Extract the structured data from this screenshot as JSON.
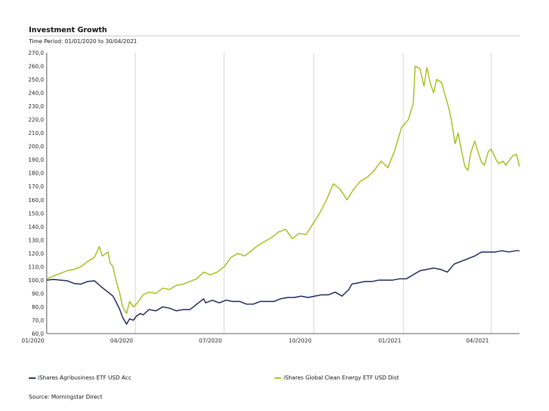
{
  "header": {
    "title": "Investment Growth",
    "subtitle": "Time Period: 01/01/2020 to 30/04/2021"
  },
  "source": "Source: Morningstar Direct",
  "colors": {
    "agri": "#1c2558",
    "clean": "#a4bf1e",
    "grid": "#e0e0e0",
    "axis": "#555555"
  },
  "chart_data": {
    "type": "line",
    "title": "Investment Growth",
    "xlabel": "",
    "ylabel": "",
    "ylim": [
      60,
      270
    ],
    "xlim": [
      "2020-01-01",
      "2021-04-30"
    ],
    "yticks": [
      "60,0",
      "70,0",
      "80,0",
      "90,0",
      "100,0",
      "110,0",
      "120,0",
      "130,0",
      "140,0",
      "150,0",
      "160,0",
      "170,0",
      "180,0",
      "190,0",
      "200,0",
      "210,0",
      "220,0",
      "230,0",
      "240,0",
      "250,0",
      "260,0",
      "270,0"
    ],
    "xticks": [
      {
        "label": "01/2020",
        "date": "2020-01-01"
      },
      {
        "label": "04/2020",
        "date": "2020-04-01"
      },
      {
        "label": "07/2020",
        "date": "2020-07-01"
      },
      {
        "label": "10/2020",
        "date": "2020-10-01"
      },
      {
        "label": "01/2021",
        "date": "2021-01-01"
      },
      {
        "label": "04/2021",
        "date": "2021-04-01"
      }
    ],
    "grid": true,
    "legend": "bottom",
    "series": [
      {
        "name": "iShares Agribusiness ETF USD Acc",
        "points": [
          [
            "2020-01-01",
            100
          ],
          [
            "2020-01-08",
            100.5
          ],
          [
            "2020-01-15",
            100
          ],
          [
            "2020-01-22",
            99.5
          ],
          [
            "2020-01-29",
            97.5
          ],
          [
            "2020-02-05",
            97
          ],
          [
            "2020-02-12",
            99
          ],
          [
            "2020-02-19",
            99.5
          ],
          [
            "2020-02-26",
            95
          ],
          [
            "2020-03-04",
            91
          ],
          [
            "2020-03-09",
            88
          ],
          [
            "2020-03-12",
            84
          ],
          [
            "2020-03-16",
            78
          ],
          [
            "2020-03-19",
            72
          ],
          [
            "2020-03-23",
            67
          ],
          [
            "2020-03-26",
            71
          ],
          [
            "2020-03-30",
            70
          ],
          [
            "2020-04-02",
            73
          ],
          [
            "2020-04-06",
            75
          ],
          [
            "2020-04-09",
            74
          ],
          [
            "2020-04-15",
            78
          ],
          [
            "2020-04-22",
            77
          ],
          [
            "2020-04-29",
            80
          ],
          [
            "2020-05-06",
            79
          ],
          [
            "2020-05-13",
            77
          ],
          [
            "2020-05-20",
            78
          ],
          [
            "2020-05-27",
            78
          ],
          [
            "2020-06-03",
            82
          ],
          [
            "2020-06-10",
            86
          ],
          [
            "2020-06-12",
            83
          ],
          [
            "2020-06-19",
            85
          ],
          [
            "2020-06-26",
            83
          ],
          [
            "2020-07-03",
            85
          ],
          [
            "2020-07-10",
            84
          ],
          [
            "2020-07-17",
            84
          ],
          [
            "2020-07-24",
            82
          ],
          [
            "2020-07-31",
            82
          ],
          [
            "2020-08-07",
            84
          ],
          [
            "2020-08-14",
            84
          ],
          [
            "2020-08-21",
            84
          ],
          [
            "2020-08-28",
            86
          ],
          [
            "2020-09-04",
            87
          ],
          [
            "2020-09-11",
            87
          ],
          [
            "2020-09-18",
            88
          ],
          [
            "2020-09-25",
            87
          ],
          [
            "2020-10-02",
            88
          ],
          [
            "2020-10-09",
            89
          ],
          [
            "2020-10-16",
            89
          ],
          [
            "2020-10-23",
            91
          ],
          [
            "2020-10-30",
            88
          ],
          [
            "2020-11-06",
            93
          ],
          [
            "2020-11-09",
            97
          ],
          [
            "2020-11-16",
            98
          ],
          [
            "2020-11-23",
            99
          ],
          [
            "2020-11-30",
            99
          ],
          [
            "2020-12-07",
            100
          ],
          [
            "2020-12-14",
            100
          ],
          [
            "2020-12-21",
            100
          ],
          [
            "2020-12-28",
            101
          ],
          [
            "2021-01-04",
            101
          ],
          [
            "2021-01-11",
            104
          ],
          [
            "2021-01-18",
            107
          ],
          [
            "2021-01-25",
            108
          ],
          [
            "2021-02-01",
            109
          ],
          [
            "2021-02-08",
            108
          ],
          [
            "2021-02-15",
            106
          ],
          [
            "2021-02-22",
            112
          ],
          [
            "2021-03-01",
            114
          ],
          [
            "2021-03-08",
            116
          ],
          [
            "2021-03-15",
            118
          ],
          [
            "2021-03-22",
            121
          ],
          [
            "2021-03-29",
            121
          ],
          [
            "2021-04-05",
            121
          ],
          [
            "2021-04-12",
            122
          ],
          [
            "2021-04-19",
            121
          ],
          [
            "2021-04-26",
            122
          ],
          [
            "2021-04-30",
            122
          ]
        ]
      },
      {
        "name": "iShares Global Clean Energy ETF USD Dist",
        "points": [
          [
            "2020-01-01",
            101
          ],
          [
            "2020-01-08",
            103
          ],
          [
            "2020-01-15",
            105
          ],
          [
            "2020-01-22",
            107
          ],
          [
            "2020-01-29",
            108
          ],
          [
            "2020-02-05",
            110
          ],
          [
            "2020-02-12",
            114
          ],
          [
            "2020-02-19",
            117
          ],
          [
            "2020-02-24",
            125
          ],
          [
            "2020-02-27",
            118
          ],
          [
            "2020-03-04",
            121
          ],
          [
            "2020-03-06",
            113
          ],
          [
            "2020-03-09",
            110
          ],
          [
            "2020-03-12",
            100
          ],
          [
            "2020-03-16",
            90
          ],
          [
            "2020-03-19",
            80
          ],
          [
            "2020-03-23",
            75
          ],
          [
            "2020-03-26",
            84
          ],
          [
            "2020-03-30",
            80
          ],
          [
            "2020-04-02",
            82
          ],
          [
            "2020-04-06",
            86
          ],
          [
            "2020-04-09",
            89
          ],
          [
            "2020-04-15",
            91
          ],
          [
            "2020-04-22",
            90
          ],
          [
            "2020-04-29",
            94
          ],
          [
            "2020-05-06",
            93
          ],
          [
            "2020-05-13",
            96
          ],
          [
            "2020-05-20",
            97
          ],
          [
            "2020-05-27",
            99
          ],
          [
            "2020-06-03",
            101
          ],
          [
            "2020-06-10",
            106
          ],
          [
            "2020-06-17",
            104
          ],
          [
            "2020-06-24",
            106
          ],
          [
            "2020-07-01",
            110
          ],
          [
            "2020-07-08",
            117
          ],
          [
            "2020-07-15",
            120
          ],
          [
            "2020-07-22",
            118
          ],
          [
            "2020-07-29",
            122
          ],
          [
            "2020-08-05",
            126
          ],
          [
            "2020-08-12",
            129
          ],
          [
            "2020-08-19",
            132
          ],
          [
            "2020-08-26",
            136
          ],
          [
            "2020-09-02",
            138
          ],
          [
            "2020-09-09",
            131
          ],
          [
            "2020-09-16",
            135
          ],
          [
            "2020-09-23",
            134
          ],
          [
            "2020-09-30",
            142
          ],
          [
            "2020-10-07",
            150
          ],
          [
            "2020-10-14",
            160
          ],
          [
            "2020-10-21",
            172
          ],
          [
            "2020-10-28",
            168
          ],
          [
            "2020-11-04",
            160
          ],
          [
            "2020-11-11",
            168
          ],
          [
            "2020-11-18",
            174
          ],
          [
            "2020-11-25",
            177
          ],
          [
            "2020-12-02",
            182
          ],
          [
            "2020-12-09",
            189
          ],
          [
            "2020-12-16",
            184
          ],
          [
            "2020-12-23",
            197
          ],
          [
            "2020-12-30",
            214
          ],
          [
            "2021-01-06",
            220
          ],
          [
            "2021-01-11",
            232
          ],
          [
            "2021-01-13",
            260
          ],
          [
            "2021-01-18",
            258
          ],
          [
            "2021-01-22",
            245
          ],
          [
            "2021-01-25",
            259
          ],
          [
            "2021-01-29",
            246
          ],
          [
            "2021-02-01",
            240
          ],
          [
            "2021-02-04",
            250
          ],
          [
            "2021-02-09",
            248
          ],
          [
            "2021-02-12",
            240
          ],
          [
            "2021-02-16",
            230
          ],
          [
            "2021-02-19",
            220
          ],
          [
            "2021-02-23",
            202
          ],
          [
            "2021-02-26",
            210
          ],
          [
            "2021-03-02",
            195
          ],
          [
            "2021-03-05",
            185
          ],
          [
            "2021-03-08",
            182
          ],
          [
            "2021-03-11",
            195
          ],
          [
            "2021-03-15",
            204
          ],
          [
            "2021-03-18",
            197
          ],
          [
            "2021-03-22",
            188
          ],
          [
            "2021-03-25",
            186
          ],
          [
            "2021-03-29",
            196
          ],
          [
            "2021-04-01",
            198
          ],
          [
            "2021-04-06",
            190
          ],
          [
            "2021-04-09",
            187
          ],
          [
            "2021-04-13",
            189
          ],
          [
            "2021-04-16",
            186
          ],
          [
            "2021-04-20",
            190
          ],
          [
            "2021-04-23",
            193
          ],
          [
            "2021-04-27",
            194
          ],
          [
            "2021-04-30",
            185
          ]
        ]
      }
    ]
  }
}
